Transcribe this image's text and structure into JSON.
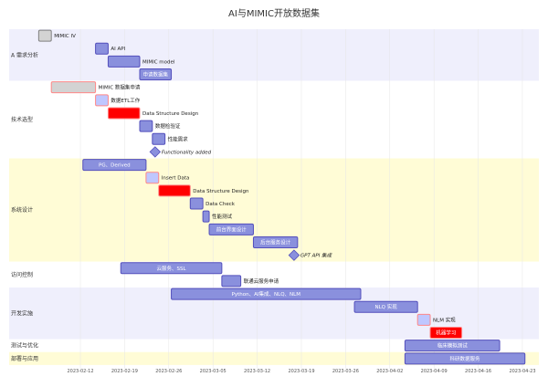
{
  "chart_data": {
    "type": "gantt",
    "title": "AI与MIMIC开放数据集",
    "x_ticks": [
      "2023-02-12",
      "2023-02-19",
      "2023-02-26",
      "2023-03-05",
      "2023-03-12",
      "2023-03-19",
      "2023-03-26",
      "2023-04-02",
      "2023-04-09",
      "2023-04-16",
      "2023-04-23"
    ],
    "colors": {
      "normal_fill": "#8a90dd",
      "normal_stroke": "#534fbc",
      "done_fill": "#d3d3d3",
      "done_stroke": "#808080",
      "active_fill": "#bfc7ff",
      "crit_fill": "#ff0000",
      "crit_stroke": "#ff8888",
      "band_a": "#efeffc",
      "band_b": "#ffffff",
      "band_c": "#fffcd6"
    },
    "sections": [
      {
        "name": "A 需求分析",
        "band": "band_a",
        "tasks": [
          {
            "name": "MIMIC IV",
            "start": "2023-02-06",
            "end": "2023-02-08",
            "status": "done"
          },
          {
            "name": "AI API",
            "start": "2023-02-15",
            "end": "2023-02-17",
            "status": "normal"
          },
          {
            "name": "MIMIC model",
            "start": "2023-02-17",
            "end": "2023-02-22",
            "status": "normal"
          },
          {
            "name": "申请数据集",
            "start": "2023-02-22",
            "end": "2023-02-27",
            "status": "normal"
          }
        ]
      },
      {
        "name": "技术选型",
        "band": "band_b",
        "tasks": [
          {
            "name": "MIMIC 数据集申请",
            "start": "2023-02-08",
            "end": "2023-02-15",
            "status": "done-crit"
          },
          {
            "name": "数据ETL工作",
            "start": "2023-02-15",
            "end": "2023-02-17",
            "status": "active-crit"
          },
          {
            "name": "Data Structure Design",
            "start": "2023-02-17",
            "end": "2023-02-22",
            "status": "crit"
          },
          {
            "name": "数据检验证",
            "start": "2023-02-22",
            "end": "2023-02-24",
            "status": "normal"
          },
          {
            "name": "性能需求",
            "start": "2023-02-24",
            "end": "2023-02-26",
            "status": "normal"
          },
          {
            "name": "Functionality added",
            "start": "2023-02-24",
            "end": "2023-02-24",
            "status": "milestone"
          }
        ]
      },
      {
        "name": "系统设计",
        "band": "band_c",
        "tasks": [
          {
            "name": "PG、Derived",
            "start": "2023-02-13",
            "end": "2023-02-23",
            "status": "normal"
          },
          {
            "name": "Insert Data",
            "start": "2023-02-23",
            "end": "2023-02-25",
            "status": "active-crit"
          },
          {
            "name": "Data Structure Design",
            "start": "2023-02-25",
            "end": "2023-03-02",
            "status": "crit"
          },
          {
            "name": "Data Check",
            "start": "2023-03-02",
            "end": "2023-03-04",
            "status": "normal"
          },
          {
            "name": "性能测试",
            "start": "2023-03-04",
            "end": "2023-03-05",
            "status": "normal"
          },
          {
            "name": "前台界面设计",
            "start": "2023-03-05",
            "end": "2023-03-12",
            "status": "normal"
          },
          {
            "name": "后台服务设计",
            "start": "2023-03-12",
            "end": "2023-03-19",
            "status": "normal"
          },
          {
            "name": "GPT API 集成",
            "start": "2023-03-18",
            "end": "2023-03-18",
            "status": "milestone"
          }
        ]
      },
      {
        "name": "访问控制",
        "band": "band_b",
        "tasks": [
          {
            "name": "云服务、SSL",
            "start": "2023-02-19",
            "end": "2023-03-07",
            "status": "normal"
          },
          {
            "name": "联通云服务申请",
            "start": "2023-03-07",
            "end": "2023-03-10",
            "status": "normal"
          }
        ]
      },
      {
        "name": "开发实施",
        "band": "band_a",
        "tasks": [
          {
            "name": "Python、AI集成、NLQ、NLM",
            "start": "2023-02-27",
            "end": "2023-03-29",
            "status": "normal"
          },
          {
            "name": "NLQ 实现",
            "start": "2023-03-28",
            "end": "2023-04-07",
            "status": "normal"
          },
          {
            "name": "NLM 实现",
            "start": "2023-04-07",
            "end": "2023-04-09",
            "status": "active-crit"
          },
          {
            "name": "机器学习",
            "start": "2023-04-09",
            "end": "2023-04-14",
            "status": "crit"
          }
        ]
      },
      {
        "name": "测试与优化",
        "band": "band_b",
        "tasks": [
          {
            "name": "临床模拟测试",
            "start": "2023-04-05",
            "end": "2023-04-20",
            "status": "normal"
          }
        ]
      },
      {
        "name": "部署与应用",
        "band": "band_c",
        "tasks": [
          {
            "name": "科研数据服务",
            "start": "2023-04-05",
            "end": "2023-04-24",
            "status": "normal"
          }
        ]
      }
    ]
  }
}
